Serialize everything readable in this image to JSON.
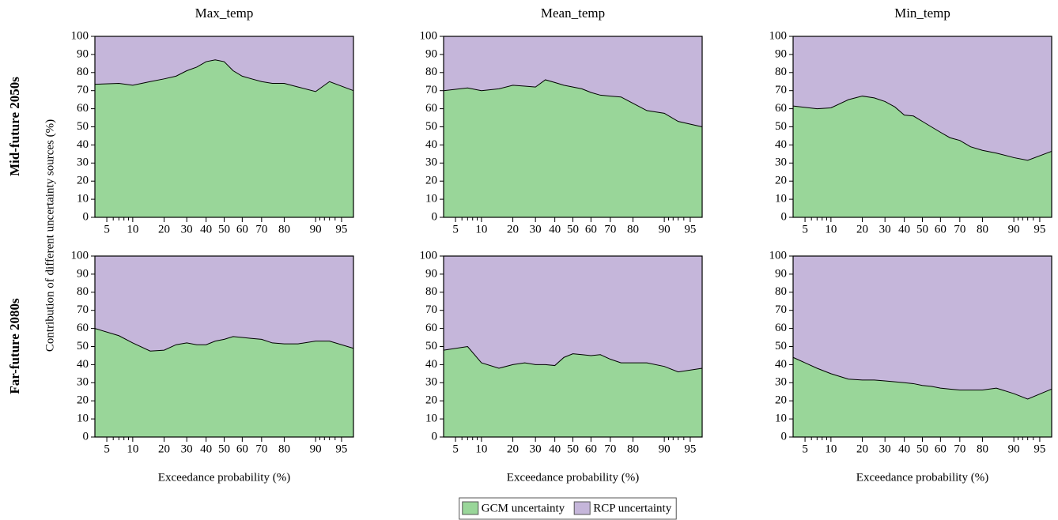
{
  "y_label": "Contribution of different uncertainty sources (%)",
  "row_labels": [
    "Mid-future 2050s",
    "Far-future 2080s"
  ],
  "chart_data": [
    {
      "type": "area",
      "title": "Max_temp",
      "xscale": "probit",
      "x": [
        3.5,
        7,
        10,
        15,
        20,
        25,
        30,
        35,
        40,
        45,
        50,
        55,
        60,
        65,
        70,
        75,
        80,
        85,
        90,
        93,
        96.5
      ],
      "xlim": [
        3.5,
        96.5
      ],
      "xticks": [
        5,
        10,
        20,
        30,
        40,
        50,
        60,
        70,
        80,
        90,
        95
      ],
      "xminorticks": [
        6,
        7,
        8,
        9,
        91,
        92,
        93,
        94
      ],
      "ylim": [
        0,
        100
      ],
      "yticks": [
        0,
        10,
        20,
        30,
        40,
        50,
        60,
        70,
        80,
        90,
        100
      ],
      "series": [
        {
          "name": "GCM uncertainty",
          "color": "#99d699",
          "values": [
            73.5,
            74,
            73,
            75,
            76.5,
            78,
            81,
            83,
            86,
            87,
            86,
            81,
            78,
            76.5,
            75,
            74,
            74,
            72,
            69.5,
            75,
            70
          ]
        },
        {
          "name": "RCP uncertainty",
          "color": "#c5b6da",
          "values": [
            26.5,
            26,
            27,
            25,
            23.5,
            22,
            19,
            17,
            14,
            13,
            14,
            19,
            22,
            23.5,
            25,
            26,
            26,
            28,
            30.5,
            25,
            30
          ]
        }
      ]
    },
    {
      "type": "area",
      "title": "Mean_temp",
      "xscale": "probit",
      "x": [
        3.5,
        7,
        10,
        15,
        20,
        25,
        30,
        35,
        40,
        45,
        50,
        55,
        60,
        65,
        70,
        75,
        80,
        85,
        90,
        93,
        96.5
      ],
      "xlim": [
        3.5,
        96.5
      ],
      "xticks": [
        5,
        10,
        20,
        30,
        40,
        50,
        60,
        70,
        80,
        90,
        95
      ],
      "xminorticks": [
        6,
        7,
        8,
        9,
        91,
        92,
        93,
        94
      ],
      "ylim": [
        0,
        100
      ],
      "yticks": [
        0,
        10,
        20,
        30,
        40,
        50,
        60,
        70,
        80,
        90,
        100
      ],
      "series": [
        {
          "name": "GCM uncertainty",
          "color": "#99d699",
          "values": [
            70,
            71.5,
            70,
            71,
            73,
            72.5,
            72,
            76,
            74.5,
            73,
            72,
            71,
            69,
            67.5,
            67,
            66.5,
            63,
            59,
            57.5,
            53,
            50
          ]
        },
        {
          "name": "RCP uncertainty",
          "color": "#c5b6da",
          "values": [
            30,
            28.5,
            30,
            29,
            27,
            27.5,
            28,
            24,
            25.5,
            27,
            28,
            29,
            31,
            32.5,
            33,
            33.5,
            37,
            41,
            42.5,
            47,
            50
          ]
        }
      ]
    },
    {
      "type": "area",
      "title": "Min_temp",
      "xscale": "probit",
      "x": [
        3.5,
        7,
        10,
        15,
        20,
        25,
        30,
        35,
        40,
        45,
        50,
        55,
        60,
        65,
        70,
        75,
        80,
        85,
        90,
        93,
        96.5
      ],
      "xlim": [
        3.5,
        96.5
      ],
      "xticks": [
        5,
        10,
        20,
        30,
        40,
        50,
        60,
        70,
        80,
        90,
        95
      ],
      "xminorticks": [
        6,
        7,
        8,
        9,
        91,
        92,
        93,
        94
      ],
      "ylim": [
        0,
        100
      ],
      "yticks": [
        0,
        10,
        20,
        30,
        40,
        50,
        60,
        70,
        80,
        90,
        100
      ],
      "series": [
        {
          "name": "GCM uncertainty",
          "color": "#99d699",
          "values": [
            61.5,
            60,
            60.5,
            65,
            67,
            66,
            64,
            61,
            56.5,
            56,
            53,
            50,
            47,
            44,
            42.5,
            39,
            37,
            35.5,
            33,
            31.5,
            36.5
          ]
        },
        {
          "name": "RCP uncertainty",
          "color": "#c5b6da",
          "values": [
            38.5,
            40,
            39.5,
            35,
            33,
            34,
            36,
            39,
            43.5,
            44,
            47,
            50,
            53,
            56,
            57.5,
            61,
            63,
            64.5,
            67,
            68.5,
            63.5
          ]
        }
      ]
    },
    {
      "type": "area",
      "xlabel": "Exceedance probability (%)",
      "xscale": "probit",
      "x": [
        3.5,
        7,
        10,
        15,
        20,
        25,
        30,
        35,
        40,
        45,
        50,
        55,
        60,
        65,
        70,
        75,
        80,
        85,
        90,
        93,
        96.5
      ],
      "xlim": [
        3.5,
        96.5
      ],
      "xticks": [
        5,
        10,
        20,
        30,
        40,
        50,
        60,
        70,
        80,
        90,
        95
      ],
      "xminorticks": [
        6,
        7,
        8,
        9,
        91,
        92,
        93,
        94
      ],
      "ylim": [
        0,
        100
      ],
      "yticks": [
        0,
        10,
        20,
        30,
        40,
        50,
        60,
        70,
        80,
        90,
        100
      ],
      "series": [
        {
          "name": "GCM uncertainty",
          "color": "#99d699",
          "values": [
            60,
            56,
            52,
            47.5,
            48,
            51,
            52,
            51,
            51,
            53,
            54,
            55.5,
            55,
            54.5,
            54,
            52,
            51.5,
            51.5,
            53,
            53,
            49
          ]
        },
        {
          "name": "RCP uncertainty",
          "color": "#c5b6da",
          "values": [
            40,
            44,
            48,
            52.5,
            52,
            49,
            48,
            49,
            49,
            47,
            46,
            44.5,
            45,
            45.5,
            46,
            48,
            48.5,
            48.5,
            47,
            47,
            51
          ]
        }
      ]
    },
    {
      "type": "area",
      "xlabel": "Exceedance probability (%)",
      "xscale": "probit",
      "x": [
        3.5,
        7,
        10,
        15,
        20,
        25,
        30,
        35,
        40,
        45,
        50,
        55,
        60,
        65,
        70,
        75,
        80,
        85,
        90,
        93,
        96.5
      ],
      "xlim": [
        3.5,
        96.5
      ],
      "xticks": [
        5,
        10,
        20,
        30,
        40,
        50,
        60,
        70,
        80,
        90,
        95
      ],
      "xminorticks": [
        6,
        7,
        8,
        9,
        91,
        92,
        93,
        94
      ],
      "ylim": [
        0,
        100
      ],
      "yticks": [
        0,
        10,
        20,
        30,
        40,
        50,
        60,
        70,
        80,
        90,
        100
      ],
      "series": [
        {
          "name": "GCM uncertainty",
          "color": "#99d699",
          "values": [
            48,
            50,
            41,
            38,
            40,
            41,
            40,
            40,
            39.5,
            44,
            46,
            45.5,
            45,
            45.5,
            43,
            41,
            41,
            41,
            39,
            36,
            38
          ]
        },
        {
          "name": "RCP uncertainty",
          "color": "#c5b6da",
          "values": [
            52,
            50,
            59,
            62,
            60,
            59,
            60,
            60,
            60.5,
            56,
            54,
            54.5,
            55,
            54.5,
            57,
            59,
            59,
            59,
            61,
            64,
            62
          ]
        }
      ]
    },
    {
      "type": "area",
      "xlabel": "Exceedance probability (%)",
      "xscale": "probit",
      "x": [
        3.5,
        7,
        10,
        15,
        20,
        25,
        30,
        35,
        40,
        45,
        50,
        55,
        60,
        65,
        70,
        75,
        80,
        85,
        90,
        93,
        96.5
      ],
      "xlim": [
        3.5,
        96.5
      ],
      "xticks": [
        5,
        10,
        20,
        30,
        40,
        50,
        60,
        70,
        80,
        90,
        95
      ],
      "xminorticks": [
        6,
        7,
        8,
        9,
        91,
        92,
        93,
        94
      ],
      "ylim": [
        0,
        100
      ],
      "yticks": [
        0,
        10,
        20,
        30,
        40,
        50,
        60,
        70,
        80,
        90,
        100
      ],
      "series": [
        {
          "name": "GCM uncertainty",
          "color": "#99d699",
          "values": [
            44,
            38,
            35,
            32,
            31.5,
            31.5,
            31,
            30.5,
            30,
            29.5,
            28.5,
            28,
            27,
            26.5,
            26,
            26,
            26,
            27,
            24,
            21,
            26.5
          ]
        },
        {
          "name": "RCP uncertainty",
          "color": "#c5b6da",
          "values": [
            56,
            62,
            65,
            68,
            68.5,
            68.5,
            69,
            69.5,
            70,
            70.5,
            71.5,
            72,
            73,
            73.5,
            74,
            74,
            74,
            73,
            76,
            79,
            73.5
          ]
        }
      ]
    }
  ]
}
